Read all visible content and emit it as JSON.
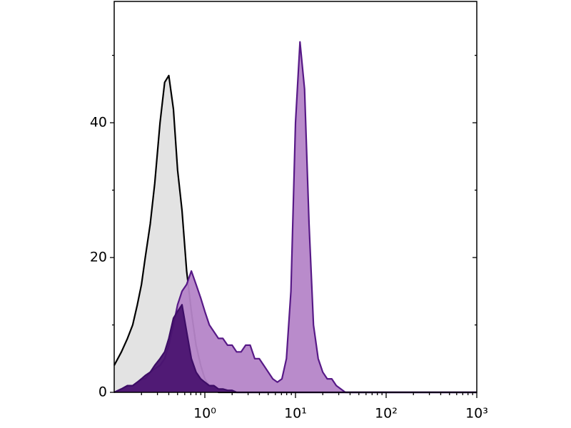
{
  "chart_data": {
    "type": "histogram-overlay",
    "xscale": "log",
    "xlim": [
      0.1,
      1000
    ],
    "ylim": [
      0,
      58
    ],
    "xticks": [
      {
        "value": 1,
        "label": "10⁰"
      },
      {
        "value": 10,
        "label": "10¹"
      },
      {
        "value": 100,
        "label": "10²"
      },
      {
        "value": 1000,
        "label": "10³"
      }
    ],
    "x_minor_ticks": [
      0.2,
      0.3,
      0.4,
      0.5,
      0.6,
      0.7,
      0.8,
      0.9,
      2,
      3,
      4,
      5,
      6,
      7,
      8,
      9,
      20,
      30,
      40,
      50,
      60,
      70,
      80,
      90,
      200,
      300,
      400,
      500,
      600,
      700,
      800,
      900
    ],
    "yticks": [
      0,
      20,
      40
    ],
    "y_minor_ticks": [
      10,
      30,
      50
    ],
    "x": [
      0.1,
      0.12,
      0.14,
      0.16,
      0.18,
      0.2,
      0.22,
      0.25,
      0.28,
      0.32,
      0.36,
      0.4,
      0.45,
      0.5,
      0.56,
      0.63,
      0.71,
      0.8,
      0.9,
      1,
      1.12,
      1.26,
      1.41,
      1.58,
      1.78,
      2,
      2.24,
      2.51,
      2.82,
      3.16,
      3.55,
      3.98,
      4.47,
      5.01,
      5.62,
      6.31,
      7.08,
      7.94,
      8.91,
      10,
      11.2,
      12.6,
      14.1,
      15.8,
      17.8,
      20,
      22.4,
      25.1,
      28.2,
      31.6,
      35.5,
      39.8,
      100,
      1000
    ],
    "series": [
      {
        "color": "#000000",
        "fill": "#e2e2e2",
        "values": [
          4,
          6,
          8,
          10,
          13,
          16,
          20,
          25,
          31,
          40,
          46,
          47,
          42,
          33,
          27,
          18,
          12,
          7,
          4,
          2,
          1,
          0.5,
          0,
          0,
          0,
          0,
          0,
          0,
          0,
          0,
          0,
          0,
          0,
          0,
          0,
          0,
          0,
          0,
          0,
          0,
          0,
          0,
          0,
          0,
          0,
          0,
          0,
          0,
          0,
          0,
          0,
          0,
          0,
          0
        ]
      },
      {
        "color": "#571987",
        "fill": "#b585c8",
        "values": [
          0,
          0.5,
          1,
          1,
          1.5,
          2,
          2,
          3,
          3.5,
          4,
          5,
          7,
          10,
          13,
          15,
          16,
          18,
          16,
          14,
          12,
          10,
          9,
          8,
          8,
          7,
          7,
          6,
          6,
          7,
          7,
          5,
          5,
          4,
          3,
          2,
          1.5,
          2,
          5,
          15,
          40,
          52,
          45,
          25,
          10,
          5,
          3,
          2,
          2,
          1,
          0.5,
          0,
          0,
          0,
          0
        ]
      },
      {
        "color": "#3d0d66",
        "fill": "#4a1470",
        "values": [
          0,
          0.5,
          1,
          1,
          1.5,
          2,
          2.5,
          3,
          4,
          5,
          6,
          8,
          11,
          12,
          13,
          9,
          5,
          3,
          2,
          1.5,
          1,
          1,
          0.5,
          0.5,
          0.3,
          0.3,
          0,
          0,
          0,
          0,
          0,
          0,
          0,
          0,
          0,
          0,
          0,
          0,
          0,
          0,
          0,
          0,
          0,
          0,
          0,
          0,
          0,
          0,
          0,
          0,
          0,
          0,
          0,
          0
        ]
      }
    ]
  }
}
